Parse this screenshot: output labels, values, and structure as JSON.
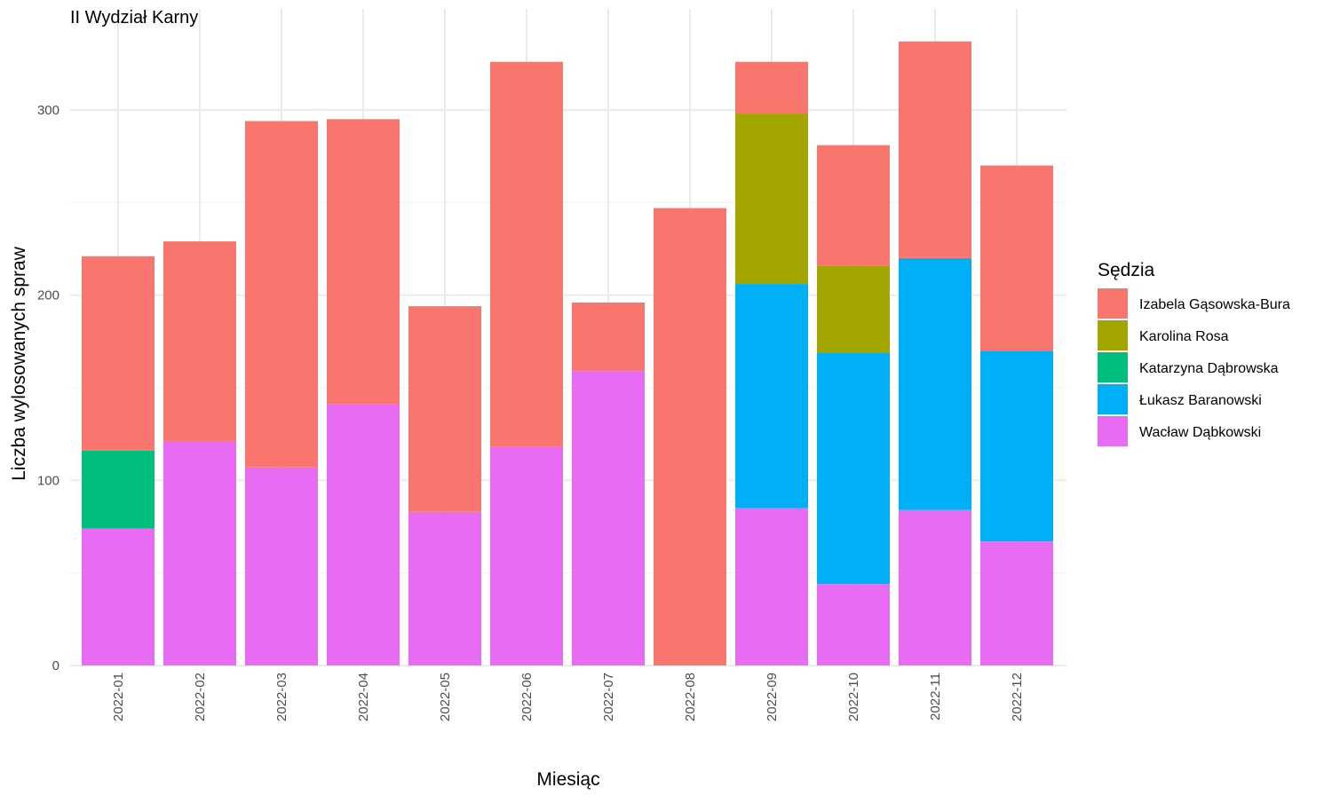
{
  "chart_data": {
    "type": "bar",
    "stacked": true,
    "title": "II Wydział Karny",
    "xlabel": "Miesiąc",
    "ylabel": "Liczba wylosowanych spraw",
    "ylim": [
      0,
      335
    ],
    "yticks": [
      0,
      100,
      200,
      300
    ],
    "grid": true,
    "legend_position": "right",
    "legend_title": "Sędzia",
    "categories": [
      "2022-01",
      "2022-02",
      "2022-03",
      "2022-04",
      "2022-05",
      "2022-06",
      "2022-07",
      "2022-08",
      "2022-09",
      "2022-10",
      "2022-11",
      "2022-12"
    ],
    "stack_order_bottom_to_top": [
      "Wacław Dąbkowski",
      "Łukasz Baranowski",
      "Katarzyna Dąbrowska",
      "Karolina Rosa",
      "Izabela Gąsowska-Bura"
    ],
    "series": [
      {
        "name": "Izabela Gąsowska-Bura",
        "color": "#F8766D",
        "values": [
          105,
          108,
          187,
          154,
          111,
          208,
          37,
          247,
          28,
          65,
          117,
          100
        ]
      },
      {
        "name": "Karolina Rosa",
        "color": "#A3A500",
        "values": [
          0,
          0,
          0,
          0,
          0,
          0,
          0,
          0,
          92,
          47,
          0,
          0
        ]
      },
      {
        "name": "Katarzyna Dąbrowska",
        "color": "#00BF7D",
        "values": [
          42,
          0,
          0,
          0,
          0,
          0,
          0,
          0,
          0,
          0,
          0,
          0
        ]
      },
      {
        "name": "Łukasz Baranowski",
        "color": "#00B0F6",
        "values": [
          0,
          0,
          0,
          0,
          0,
          0,
          0,
          0,
          121,
          125,
          136,
          103
        ]
      },
      {
        "name": "Wacław Dąbkowski",
        "color": "#E76BF3",
        "values": [
          74,
          121,
          107,
          141,
          83,
          118,
          159,
          0,
          85,
          44,
          84,
          67
        ]
      }
    ]
  }
}
